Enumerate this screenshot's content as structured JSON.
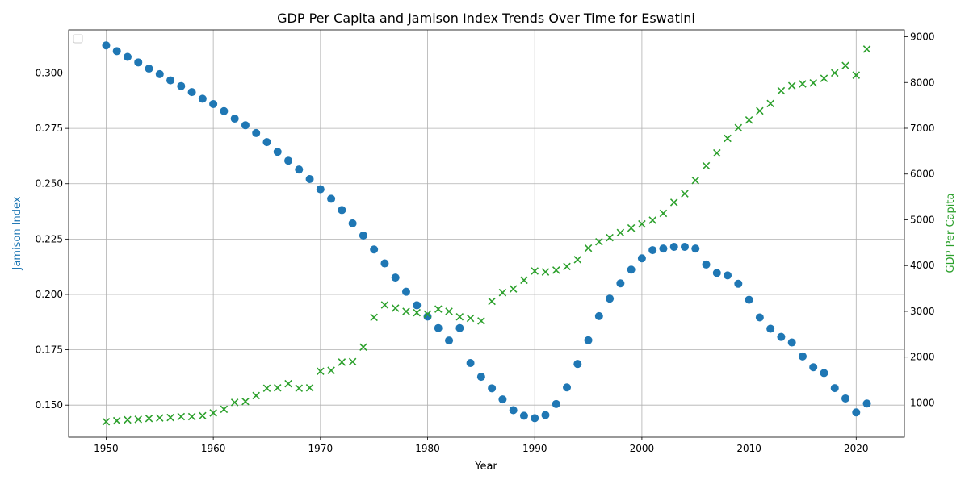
{
  "chart_data": {
    "type": "scatter",
    "title": "GDP Per Capita and Jamison Index Trends Over Time for Eswatini",
    "xlabel": "Year",
    "ylabel_left": "Jamison Index",
    "ylabel_right": "GDP Per Capita",
    "xlim": [
      1946.5,
      2024.5
    ],
    "ylim_left": [
      0.1355,
      0.3195
    ],
    "ylim_right": [
      250,
      9150
    ],
    "x_ticks": [
      "1950",
      "1960",
      "1970",
      "1980",
      "1990",
      "2000",
      "2010",
      "2020"
    ],
    "y_left_ticks": [
      "0.150",
      "0.175",
      "0.200",
      "0.225",
      "0.250",
      "0.275",
      "0.300"
    ],
    "y_right_ticks": [
      "1000",
      "2000",
      "3000",
      "4000",
      "5000",
      "6000",
      "7000",
      "8000",
      "9000"
    ],
    "grid": true,
    "legend": "top-left",
    "colors": {
      "jamison": "#1f77b4",
      "gdp": "#2ca02c"
    },
    "years": [
      1950,
      1951,
      1952,
      1953,
      1954,
      1955,
      1956,
      1957,
      1958,
      1959,
      1960,
      1961,
      1962,
      1963,
      1964,
      1965,
      1966,
      1967,
      1968,
      1969,
      1970,
      1971,
      1972,
      1973,
      1974,
      1975,
      1976,
      1977,
      1978,
      1979,
      1980,
      1981,
      1982,
      1983,
      1984,
      1985,
      1986,
      1987,
      1988,
      1989,
      1990,
      1991,
      1992,
      1993,
      1994,
      1995,
      1996,
      1997,
      1998,
      1999,
      2000,
      2001,
      2002,
      2003,
      2004,
      2005,
      2006,
      2007,
      2008,
      2009,
      2010,
      2011,
      2012,
      2013,
      2014,
      2015,
      2016,
      2017,
      2018,
      2019,
      2020,
      2021
    ],
    "jamison_index": [
      0.3125,
      0.3099,
      0.3073,
      0.3048,
      0.302,
      0.2995,
      0.2967,
      0.2941,
      0.2914,
      0.2884,
      0.286,
      0.2828,
      0.2794,
      0.2764,
      0.2729,
      0.2688,
      0.2644,
      0.2604,
      0.2564,
      0.2521,
      0.2475,
      0.2432,
      0.2381,
      0.2321,
      0.2266,
      0.2203,
      0.214,
      0.2076,
      0.2012,
      0.1951,
      0.19,
      0.1848,
      0.1792,
      0.1848,
      0.169,
      0.1628,
      0.1576,
      0.1526,
      0.1477,
      0.1452,
      0.1441,
      0.1455,
      0.1505,
      0.158,
      0.1686,
      0.1793,
      0.1902,
      0.1981,
      0.205,
      0.2112,
      0.2163,
      0.22,
      0.2207,
      0.2215,
      0.2215,
      0.2207,
      0.2135,
      0.2097,
      0.2086,
      0.2048,
      0.1976,
      0.1896,
      0.1845,
      0.1808,
      0.1783,
      0.172,
      0.1671,
      0.1645,
      0.1577,
      0.153,
      0.1467,
      0.1507
    ],
    "gdp_per_capita": [
      590,
      610,
      630,
      640,
      660,
      670,
      680,
      700,
      700,
      720,
      780,
      860,
      1010,
      1030,
      1160,
      1320,
      1330,
      1420,
      1320,
      1330,
      1690,
      1710,
      1890,
      1900,
      2220,
      2870,
      3140,
      3070,
      3000,
      2970,
      2940,
      3050,
      3000,
      2880,
      2850,
      2790,
      3220,
      3410,
      3490,
      3680,
      3880,
      3860,
      3900,
      3980,
      4130,
      4380,
      4520,
      4610,
      4720,
      4820,
      4910,
      4990,
      5140,
      5380,
      5570,
      5860,
      6180,
      6460,
      6780,
      7010,
      7180,
      7380,
      7540,
      7820,
      7930,
      7970,
      7990,
      8090,
      8210,
      8370,
      8160,
      8730
    ]
  }
}
